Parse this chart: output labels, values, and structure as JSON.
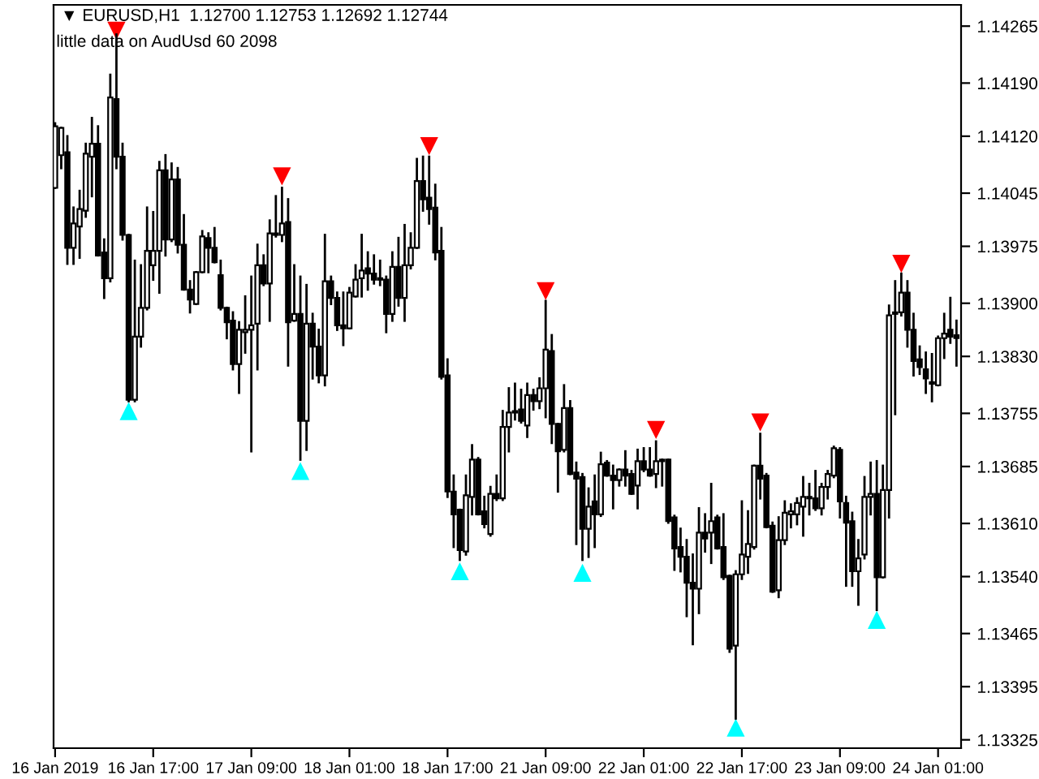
{
  "chart_data": {
    "type": "candlestick",
    "title": "▼ EURUSD,H1  1.12700 1.12753 1.12692 1.12744",
    "annotations": [
      "little data on AudUsd 60 2098"
    ],
    "categories": [
      "16 Jan 2019",
      null,
      null,
      null,
      null,
      null,
      null,
      null,
      null,
      null,
      null,
      null,
      null,
      null,
      null,
      null,
      "16 Jan 17:00",
      null,
      null,
      null,
      null,
      null,
      null,
      null,
      null,
      null,
      null,
      null,
      null,
      null,
      null,
      null,
      "17 Jan 09:00",
      null,
      null,
      null,
      null,
      null,
      null,
      null,
      null,
      null,
      null,
      null,
      null,
      null,
      null,
      null,
      "18 Jan 01:00",
      null,
      null,
      null,
      null,
      null,
      null,
      null,
      null,
      null,
      null,
      null,
      null,
      null,
      null,
      null,
      "18 Jan 17:00",
      null,
      null,
      null,
      null,
      null,
      null,
      null,
      null,
      null,
      null,
      null,
      null,
      null,
      null,
      null,
      "21 Jan 09:00",
      null,
      null,
      null,
      null,
      null,
      null,
      null,
      null,
      null,
      null,
      null,
      null,
      null,
      null,
      null,
      "22 Jan 01:00",
      null,
      null,
      null,
      null,
      null,
      null,
      null,
      null,
      null,
      null,
      null,
      null,
      null,
      null,
      null,
      "22 Jan 17:00",
      null,
      null,
      null,
      null,
      null,
      null,
      null,
      null,
      null,
      null,
      null,
      null,
      null,
      null,
      null,
      "23 Jan 09:00",
      null,
      null,
      null,
      null,
      null,
      null,
      null,
      null,
      null,
      null,
      null,
      null,
      null,
      null,
      null,
      "24 Jan 01:00",
      null,
      null,
      null
    ],
    "series": [
      {
        "type": "candlestick",
        "color": "#000000",
        "ohlc": [
          [
            1.14052,
            1.14137,
            1.14052,
            1.14133
          ],
          [
            1.14095,
            1.14131,
            1.14078,
            1.14131
          ],
          [
            1.14099,
            1.1412,
            1.13952,
            1.13973
          ],
          [
            1.13973,
            1.14026,
            1.13952,
            1.14005
          ],
          [
            1.14001,
            1.14048,
            1.1396,
            1.14024
          ],
          [
            1.14022,
            1.1411,
            1.14014,
            1.14097
          ],
          [
            1.14093,
            1.14144,
            1.14041,
            1.1411
          ],
          [
            1.1411,
            1.14133,
            1.13963,
            1.13963
          ],
          [
            1.13967,
            1.13984,
            1.13907,
            1.13933
          ],
          [
            1.13933,
            1.14201,
            1.13929,
            1.14171
          ],
          [
            1.14169,
            1.14254,
            1.14078,
            1.14093
          ],
          [
            1.14093,
            1.1411,
            1.13984,
            1.1399
          ],
          [
            1.1399,
            1.1399,
            1.13771,
            1.13773
          ],
          [
            1.13773,
            1.13956,
            1.13771,
            1.13856
          ],
          [
            1.13856,
            1.1395,
            1.13843,
            1.13894
          ],
          [
            1.13894,
            1.14026,
            1.13892,
            1.13969
          ],
          [
            1.1395,
            1.1402,
            1.13931,
            1.13969
          ],
          [
            1.13969,
            1.14086,
            1.13914,
            1.14075
          ],
          [
            1.14075,
            1.14095,
            1.13963,
            1.13984
          ],
          [
            1.13984,
            1.14084,
            1.13982,
            1.14063
          ],
          [
            1.14063,
            1.14078,
            1.13967,
            1.13977
          ],
          [
            1.13977,
            1.14016,
            1.13918,
            1.13918
          ],
          [
            1.13918,
            1.13929,
            1.13888,
            1.13905
          ],
          [
            1.13899,
            1.13941,
            1.13899,
            1.13941
          ],
          [
            1.13941,
            1.13995,
            1.13941,
            1.13988
          ],
          [
            1.13986,
            1.13992,
            1.13941,
            1.13973
          ],
          [
            1.13973,
            1.13999,
            1.13954,
            1.13954
          ],
          [
            1.13937,
            1.13956,
            1.13892,
            1.13894
          ],
          [
            1.13894,
            1.13894,
            1.13854,
            1.13875
          ],
          [
            1.13877,
            1.13888,
            1.13813,
            1.1382
          ],
          [
            1.1382,
            1.13875,
            1.13782,
            1.13865
          ],
          [
            1.13862,
            1.13909,
            1.13835,
            1.13865
          ],
          [
            1.13865,
            1.13935,
            1.13705,
            1.13871
          ],
          [
            1.13873,
            1.13977,
            1.13813,
            1.1395
          ],
          [
            1.1395,
            1.13963,
            1.13924,
            1.13926
          ],
          [
            1.13926,
            1.14009,
            1.13877,
            1.13992
          ],
          [
            1.1399,
            1.14041,
            1.13988,
            1.13992
          ],
          [
            1.1399,
            1.14052,
            1.13982,
            1.14005
          ],
          [
            1.14007,
            1.14037,
            1.13818,
            1.13875
          ],
          [
            1.13877,
            1.1395,
            1.13877,
            1.13886
          ],
          [
            1.13886,
            1.13935,
            1.13694,
            1.13745
          ],
          [
            1.13745,
            1.13924,
            1.13707,
            1.13873
          ],
          [
            1.13873,
            1.13886,
            1.13801,
            1.13843
          ],
          [
            1.13843,
            1.13865,
            1.13796,
            1.13805
          ],
          [
            1.13805,
            1.1399,
            1.13792,
            1.13929
          ],
          [
            1.13929,
            1.13935,
            1.13899,
            1.13907
          ],
          [
            1.13907,
            1.13914,
            1.13865,
            1.13871
          ],
          [
            1.13871,
            1.13914,
            1.13845,
            1.13867
          ],
          [
            1.13867,
            1.1392,
            1.13867,
            1.13914
          ],
          [
            1.13909,
            1.1395,
            1.13909,
            1.13931
          ],
          [
            1.13933,
            1.1399,
            1.13909,
            1.13943
          ],
          [
            1.13946,
            1.13967,
            1.13918,
            1.13939
          ],
          [
            1.13939,
            1.13963,
            1.13926,
            1.13931
          ],
          [
            1.13933,
            1.13956,
            1.13924,
            1.13931
          ],
          [
            1.13931,
            1.13935,
            1.13862,
            1.13886
          ],
          [
            1.13886,
            1.13967,
            1.13877,
            1.13948
          ],
          [
            1.13948,
            1.13986,
            1.13897,
            1.13907
          ],
          [
            1.13907,
            1.14003,
            1.13877,
            1.1395
          ],
          [
            1.1395,
            1.13992,
            1.13946,
            1.13973
          ],
          [
            1.13973,
            1.1409,
            1.13973,
            1.14061
          ],
          [
            1.14061,
            1.14093,
            1.14022,
            1.14037
          ],
          [
            1.14039,
            1.14093,
            1.14005,
            1.14024
          ],
          [
            1.14026,
            1.14056,
            1.13958,
            1.13967
          ],
          [
            1.13969,
            1.13999,
            1.13801,
            1.13803
          ],
          [
            1.13805,
            1.13826,
            1.13645,
            1.13652
          ],
          [
            1.13652,
            1.13673,
            1.13579,
            1.13622
          ],
          [
            1.13628,
            1.13628,
            1.13562,
            1.13575
          ],
          [
            1.13573,
            1.13673,
            1.13569,
            1.13647
          ],
          [
            1.13645,
            1.13713,
            1.13622,
            1.13694
          ],
          [
            1.13694,
            1.13696,
            1.13622,
            1.13622
          ],
          [
            1.13626,
            1.13645,
            1.13605,
            1.13609
          ],
          [
            1.13596,
            1.13658,
            1.13594,
            1.13649
          ],
          [
            1.13649,
            1.13673,
            1.13641,
            1.13643
          ],
          [
            1.13643,
            1.13758,
            1.13641,
            1.13737
          ],
          [
            1.13737,
            1.13788,
            1.13705,
            1.13756
          ],
          [
            1.13756,
            1.13794,
            1.13747,
            1.13758
          ],
          [
            1.1376,
            1.13786,
            1.13743,
            1.13745
          ],
          [
            1.13739,
            1.13794,
            1.13724,
            1.13779
          ],
          [
            1.13779,
            1.13786,
            1.1376,
            1.13771
          ],
          [
            1.13771,
            1.13801,
            1.13762,
            1.13788
          ],
          [
            1.13788,
            1.13903,
            1.1375,
            1.13839
          ],
          [
            1.13837,
            1.13858,
            1.13716,
            1.13741
          ],
          [
            1.13741,
            1.13741,
            1.13652,
            1.13705
          ],
          [
            1.13707,
            1.13792,
            1.13705,
            1.13762
          ],
          [
            1.13762,
            1.13771,
            1.13675,
            1.13675
          ],
          [
            1.13677,
            1.1369,
            1.13583,
            1.13669
          ],
          [
            1.13671,
            1.13675,
            1.13562,
            1.13603
          ],
          [
            1.13603,
            1.13656,
            1.13566,
            1.13632
          ],
          [
            1.13639,
            1.13673,
            1.13579,
            1.13622
          ],
          [
            1.13622,
            1.13703,
            1.1362,
            1.13688
          ],
          [
            1.1369,
            1.13692,
            1.13673,
            1.13673
          ],
          [
            1.13673,
            1.13686,
            1.1363,
            1.13667
          ],
          [
            1.13667,
            1.13681,
            1.1366,
            1.13681
          ],
          [
            1.13681,
            1.13705,
            1.1366,
            1.13673
          ],
          [
            1.13675,
            1.13679,
            1.13649,
            1.13649
          ],
          [
            1.1366,
            1.13707,
            1.1363,
            1.13692
          ],
          [
            1.13692,
            1.13709,
            1.13679,
            1.13681
          ],
          [
            1.13681,
            1.13709,
            1.13673,
            1.13673
          ],
          [
            1.13675,
            1.13718,
            1.13658,
            1.13692
          ],
          [
            1.13692,
            1.13694,
            1.1366,
            1.13694
          ],
          [
            1.13694,
            1.13694,
            1.13611,
            1.13613
          ],
          [
            1.13618,
            1.1362,
            1.13549,
            1.13577
          ],
          [
            1.13579,
            1.13603,
            1.13547,
            1.13566
          ],
          [
            1.13566,
            1.13588,
            1.13488,
            1.13532
          ],
          [
            1.13532,
            1.13569,
            1.13451,
            1.13524
          ],
          [
            1.13524,
            1.1363,
            1.13492,
            1.13598
          ],
          [
            1.13598,
            1.13622,
            1.13573,
            1.1359
          ],
          [
            1.13598,
            1.13662,
            1.13558,
            1.13613
          ],
          [
            1.13618,
            1.1362,
            1.13577,
            1.13577
          ],
          [
            1.13579,
            1.13622,
            1.13537,
            1.13539
          ],
          [
            1.13541,
            1.13541,
            1.13441,
            1.13445
          ],
          [
            1.13449,
            1.13547,
            1.13353,
            1.13543
          ],
          [
            1.13543,
            1.13639,
            1.13537,
            1.13569
          ],
          [
            1.13566,
            1.13626,
            1.13545,
            1.13583
          ],
          [
            1.13579,
            1.13686,
            1.13577,
            1.13686
          ],
          [
            1.13686,
            1.13728,
            1.13643,
            1.13669
          ],
          [
            1.13673,
            1.13675,
            1.13605,
            1.13605
          ],
          [
            1.13607,
            1.13611,
            1.1352,
            1.1352
          ],
          [
            1.13522,
            1.13618,
            1.13513,
            1.13588
          ],
          [
            1.13588,
            1.13639,
            1.13583,
            1.13624
          ],
          [
            1.13622,
            1.13635,
            1.13605,
            1.13626
          ],
          [
            1.13622,
            1.13643,
            1.13609,
            1.13637
          ],
          [
            1.13632,
            1.13671,
            1.13594,
            1.13645
          ],
          [
            1.13643,
            1.13662,
            1.13622,
            1.13645
          ],
          [
            1.13643,
            1.13679,
            1.13628,
            1.1363
          ],
          [
            1.1363,
            1.13662,
            1.13622,
            1.13658
          ],
          [
            1.13658,
            1.13679,
            1.13643,
            1.13675
          ],
          [
            1.13673,
            1.13711,
            1.13671,
            1.13709
          ],
          [
            1.13707,
            1.13709,
            1.13618,
            1.13639
          ],
          [
            1.13637,
            1.13645,
            1.13528,
            1.13611
          ],
          [
            1.13613,
            1.13624,
            1.13528,
            1.13547
          ],
          [
            1.13547,
            1.13588,
            1.13503,
            1.13564
          ],
          [
            1.13569,
            1.13671,
            1.13564,
            1.13645
          ],
          [
            1.13645,
            1.1369,
            1.13622,
            1.13649
          ],
          [
            1.13649,
            1.13692,
            1.13496,
            1.13539
          ],
          [
            1.13539,
            1.13686,
            1.13539,
            1.13654
          ],
          [
            1.13654,
            1.13897,
            1.13618,
            1.13884
          ],
          [
            1.13886,
            1.13929,
            1.13754,
            1.13888
          ],
          [
            1.13888,
            1.13939,
            1.13884,
            1.13914
          ],
          [
            1.13914,
            1.13929,
            1.13843,
            1.13865
          ],
          [
            1.13865,
            1.13886,
            1.13805,
            1.13824
          ],
          [
            1.13826,
            1.13843,
            1.13807,
            1.13816
          ],
          [
            1.13813,
            1.13835,
            1.13782,
            1.13801
          ],
          [
            1.13794,
            1.13833,
            1.13771,
            1.13796
          ],
          [
            1.13792,
            1.13856,
            1.13792,
            1.13854
          ],
          [
            1.13854,
            1.13886,
            1.13828,
            1.1386
          ],
          [
            1.13865,
            1.13907,
            1.13848,
            1.13856
          ],
          [
            1.13858,
            1.13877,
            1.13818,
            1.13854
          ]
        ]
      },
      {
        "type": "scatter",
        "color": "#ff0000",
        "marker": "triangle",
        "values": [
          null,
          null,
          null,
          null,
          null,
          null,
          null,
          null,
          null,
          null,
          1.14259,
          null,
          null,
          null,
          null,
          null,
          null,
          null,
          null,
          null,
          null,
          null,
          null,
          null,
          null,
          null,
          null,
          null,
          null,
          null,
          null,
          null,
          null,
          null,
          null,
          null,
          null,
          1.14067,
          null,
          null,
          null,
          null,
          null,
          null,
          null,
          null,
          null,
          null,
          null,
          null,
          null,
          null,
          null,
          null,
          null,
          null,
          null,
          null,
          null,
          null,
          null,
          1.14107,
          null,
          null,
          null,
          null,
          null,
          null,
          null,
          null,
          null,
          null,
          null,
          null,
          null,
          null,
          null,
          null,
          null,
          null,
          1.13916,
          null,
          null,
          null,
          null,
          null,
          null,
          null,
          null,
          null,
          null,
          null,
          null,
          null,
          null,
          null,
          null,
          null,
          1.13733,
          null,
          null,
          null,
          null,
          null,
          null,
          null,
          null,
          null,
          null,
          null,
          null,
          null,
          null,
          null,
          null,
          1.13743,
          null,
          null,
          null,
          null,
          null,
          null,
          null,
          null,
          null,
          null,
          null,
          null,
          null,
          null,
          null,
          null,
          null,
          null,
          null,
          null,
          null,
          null,
          1.13952,
          null,
          null,
          null,
          null,
          null,
          null,
          null,
          null,
          null
        ]
      },
      {
        "type": "scatter",
        "color": "#00ffff",
        "marker": "triangle",
        "values": [
          null,
          null,
          null,
          null,
          null,
          null,
          null,
          null,
          null,
          null,
          null,
          null,
          1.13758,
          null,
          null,
          null,
          null,
          null,
          null,
          null,
          null,
          null,
          null,
          null,
          null,
          null,
          null,
          null,
          null,
          null,
          null,
          null,
          null,
          null,
          null,
          null,
          null,
          null,
          null,
          null,
          1.13679,
          null,
          null,
          null,
          null,
          null,
          null,
          null,
          null,
          null,
          null,
          null,
          null,
          null,
          null,
          null,
          null,
          null,
          null,
          null,
          null,
          null,
          null,
          null,
          null,
          null,
          1.13547,
          null,
          null,
          null,
          null,
          null,
          null,
          null,
          null,
          null,
          null,
          null,
          null,
          null,
          null,
          null,
          null,
          null,
          null,
          null,
          1.13545,
          null,
          null,
          null,
          null,
          null,
          null,
          null,
          null,
          null,
          null,
          null,
          null,
          null,
          null,
          null,
          null,
          null,
          null,
          null,
          null,
          null,
          null,
          null,
          null,
          1.13341,
          null,
          null,
          null,
          null,
          null,
          null,
          null,
          null,
          null,
          null,
          null,
          null,
          null,
          null,
          null,
          null,
          null,
          null,
          null,
          null,
          null,
          null,
          1.13483,
          null,
          null,
          null,
          null,
          null,
          null,
          null,
          null,
          null,
          null,
          null,
          null,
          null
        ]
      }
    ],
    "ylim": [
      1.13314,
      1.14293
    ],
    "yticks": [
      1.14265,
      {
        "value": 1.1419,
        "label": "1.14190"
      },
      {
        "value": 1.1412,
        "label": "1.14120"
      },
      1.14045,
      1.13975,
      {
        "value": 1.139,
        "label": "1.13900"
      },
      {
        "value": 1.1383,
        "label": "1.13830"
      },
      1.13755,
      1.13685,
      {
        "value": 1.1361,
        "label": "1.13610"
      },
      {
        "value": 1.1354,
        "label": "1.13540"
      },
      1.13465,
      1.13395,
      1.13325
    ],
    "grid": false,
    "legend": false
  }
}
